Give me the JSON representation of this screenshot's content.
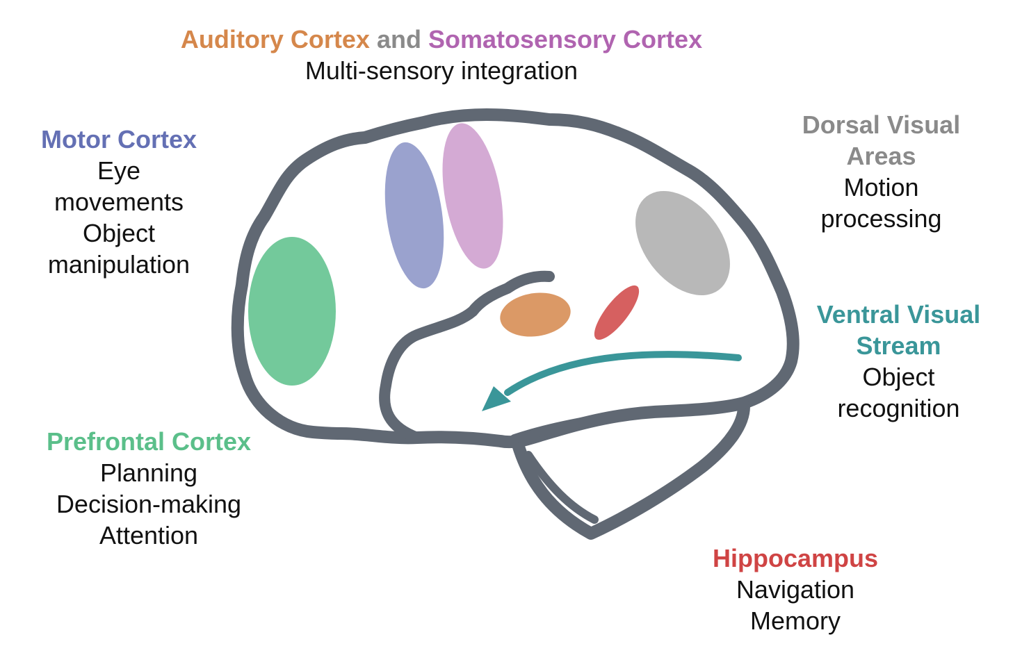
{
  "colors": {
    "outline": "#606873",
    "auditory": "#d5874b",
    "and": "#8a8a8a",
    "somatosensory": "#b064b0",
    "motor": "#6470b4",
    "prefrontal": "#5bbf8a",
    "dorsal": "#8a8a8a",
    "ventral": "#3a9699",
    "hippocampus": "#cf4444",
    "text": "#111111"
  },
  "top": {
    "auditory": "Auditory Cortex",
    "and": "and",
    "somatosensory": "Somatosensory Cortex",
    "function": "Multi-sensory integration"
  },
  "motor": {
    "title": "Motor Cortex",
    "functions": [
      "Eye",
      "movements",
      "Object",
      "manipulation"
    ]
  },
  "prefrontal": {
    "title": "Prefrontal Cortex",
    "functions": [
      "Planning",
      "Decision-making",
      "Attention"
    ]
  },
  "dorsal": {
    "title_lines": [
      "Dorsal Visual",
      "Areas"
    ],
    "functions": [
      "Motion",
      "processing"
    ]
  },
  "ventral": {
    "title_lines": [
      "Ventral Visual",
      "Stream"
    ],
    "functions": [
      "Object",
      "recognition"
    ]
  },
  "hippocampus": {
    "title": "Hippocampus",
    "functions": [
      "Navigation",
      "Memory"
    ]
  }
}
